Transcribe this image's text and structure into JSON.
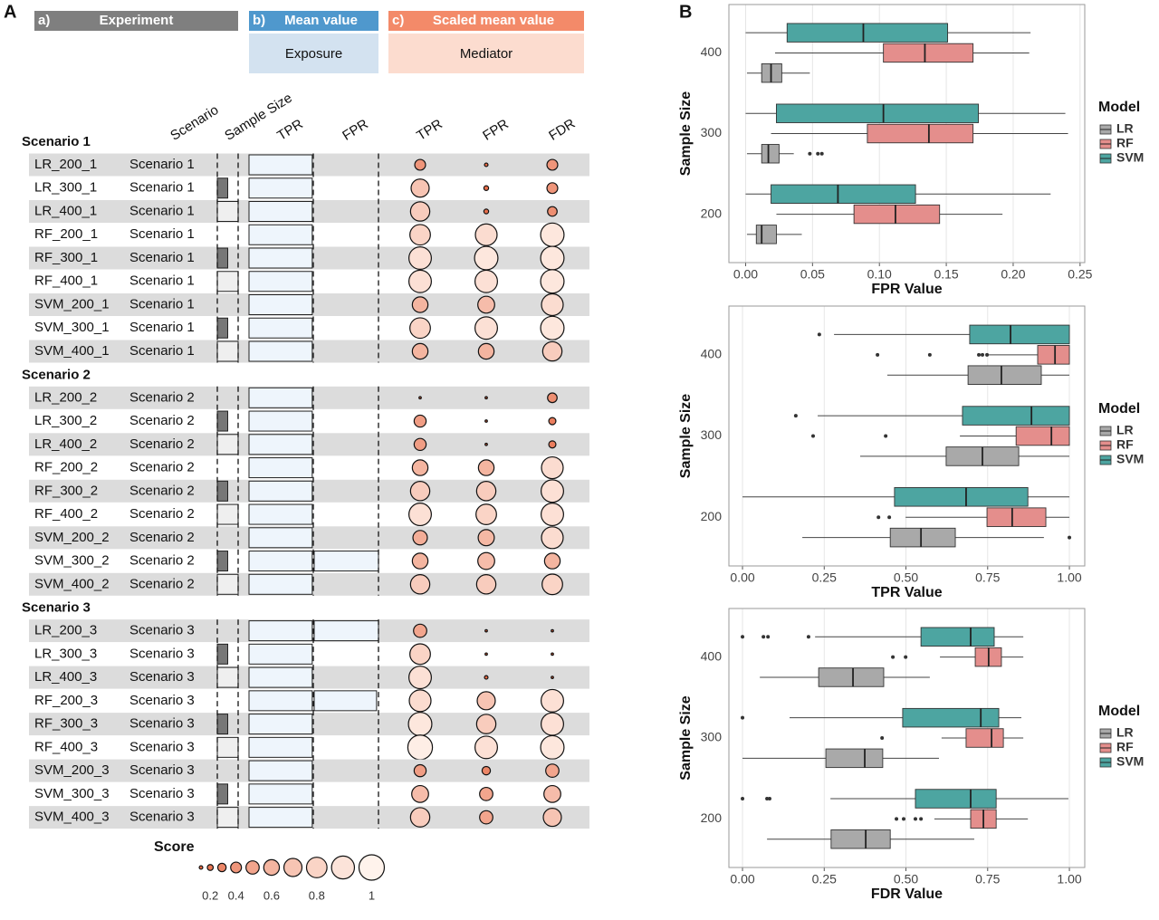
{
  "panel_a": {
    "label": "A",
    "headers": [
      {
        "tag": "a)",
        "title": "Experiment",
        "color": "#7f7f7f"
      },
      {
        "tag": "b)",
        "title": "Mean value",
        "subtitle": "Exposure",
        "color": "#4f98cd",
        "subcolor": "#d3e2f0"
      },
      {
        "tag": "c)",
        "title": "Scaled mean value",
        "subtitle": "Mediator",
        "color": "#f38a69",
        "subcolor": "#fcdccf"
      }
    ],
    "columns": [
      "Scenario",
      "Sample Size",
      "TPR",
      "FPR",
      "TPR",
      "FPR",
      "FDR"
    ],
    "sample_size_lim": [
      200,
      400
    ],
    "sample_size_colors": {
      "200": "#ffffff",
      "300": "#777777",
      "400": "#efefef"
    },
    "exposure_lim": [
      0,
      1
    ],
    "score_colors": [
      "#e4572e",
      "#fff3ec"
    ],
    "sections": [
      {
        "title": "Scenario 1",
        "rows": [
          {
            "id": "LR_200_1",
            "scenario": "Scenario 1",
            "sample_size": 200,
            "exposure_tpr": 0.97,
            "exposure_fpr": 0,
            "mediator_tpr": 0.4,
            "mediator_fpr": 0.1,
            "mediator_fdr": 0.4
          },
          {
            "id": "LR_300_1",
            "scenario": "Scenario 1",
            "sample_size": 300,
            "exposure_tpr": 0.97,
            "exposure_fpr": 0,
            "mediator_tpr": 0.7,
            "mediator_fpr": 0.15,
            "mediator_fdr": 0.4
          },
          {
            "id": "LR_400_1",
            "scenario": "Scenario 1",
            "sample_size": 400,
            "exposure_tpr": 0.97,
            "exposure_fpr": 0,
            "mediator_tpr": 0.75,
            "mediator_fpr": 0.15,
            "mediator_fdr": 0.35
          },
          {
            "id": "RF_200_1",
            "scenario": "Scenario 1",
            "sample_size": 200,
            "exposure_tpr": 0.97,
            "exposure_fpr": 0,
            "mediator_tpr": 0.8,
            "mediator_fpr": 0.85,
            "mediator_fdr": 0.92
          },
          {
            "id": "RF_300_1",
            "scenario": "Scenario 1",
            "sample_size": 300,
            "exposure_tpr": 0.97,
            "exposure_fpr": 0,
            "mediator_tpr": 0.88,
            "mediator_fpr": 0.92,
            "mediator_fdr": 0.92
          },
          {
            "id": "RF_400_1",
            "scenario": "Scenario 1",
            "sample_size": 400,
            "exposure_tpr": 0.97,
            "exposure_fpr": 0,
            "mediator_tpr": 0.88,
            "mediator_fpr": 0.88,
            "mediator_fdr": 0.92
          },
          {
            "id": "SVM_200_1",
            "scenario": "Scenario 1",
            "sample_size": 200,
            "exposure_tpr": 0.97,
            "exposure_fpr": 0,
            "mediator_tpr": 0.6,
            "mediator_fpr": 0.65,
            "mediator_fdr": 0.85
          },
          {
            "id": "SVM_300_1",
            "scenario": "Scenario 1",
            "sample_size": 300,
            "exposure_tpr": 0.97,
            "exposure_fpr": 0,
            "mediator_tpr": 0.8,
            "mediator_fpr": 0.88,
            "mediator_fdr": 0.92
          },
          {
            "id": "SVM_400_1",
            "scenario": "Scenario 1",
            "sample_size": 400,
            "exposure_tpr": 0.97,
            "exposure_fpr": 0,
            "mediator_tpr": 0.6,
            "mediator_fpr": 0.6,
            "mediator_fdr": 0.75
          }
        ]
      },
      {
        "title": "Scenario 2",
        "rows": [
          {
            "id": "LR_200_2",
            "scenario": "Scenario 2",
            "sample_size": 200,
            "exposure_tpr": 0.97,
            "exposure_fpr": 0,
            "mediator_tpr": 0.05,
            "mediator_fpr": 0.05,
            "mediator_fdr": 0.35
          },
          {
            "id": "LR_300_2",
            "scenario": "Scenario 2",
            "sample_size": 300,
            "exposure_tpr": 0.97,
            "exposure_fpr": 0,
            "mediator_tpr": 0.45,
            "mediator_fpr": 0.05,
            "mediator_fdr": 0.25
          },
          {
            "id": "LR_400_2",
            "scenario": "Scenario 2",
            "sample_size": 400,
            "exposure_tpr": 0.97,
            "exposure_fpr": 0,
            "mediator_tpr": 0.45,
            "mediator_fpr": 0.05,
            "mediator_fdr": 0.25
          },
          {
            "id": "RF_200_2",
            "scenario": "Scenario 2",
            "sample_size": 200,
            "exposure_tpr": 0.97,
            "exposure_fpr": 0,
            "mediator_tpr": 0.6,
            "mediator_fpr": 0.6,
            "mediator_fdr": 0.85
          },
          {
            "id": "RF_300_2",
            "scenario": "Scenario 2",
            "sample_size": 300,
            "exposure_tpr": 0.97,
            "exposure_fpr": 0,
            "mediator_tpr": 0.75,
            "mediator_fpr": 0.75,
            "mediator_fdr": 0.88
          },
          {
            "id": "RF_400_2",
            "scenario": "Scenario 2",
            "sample_size": 400,
            "exposure_tpr": 0.97,
            "exposure_fpr": 0,
            "mediator_tpr": 0.88,
            "mediator_fpr": 0.8,
            "mediator_fdr": 0.88
          },
          {
            "id": "SVM_200_2",
            "scenario": "Scenario 2",
            "sample_size": 200,
            "exposure_tpr": 0.97,
            "exposure_fpr": 0,
            "mediator_tpr": 0.55,
            "mediator_fpr": 0.62,
            "mediator_fdr": 0.85
          },
          {
            "id": "SVM_300_2",
            "scenario": "Scenario 2",
            "sample_size": 300,
            "exposure_tpr": 0.97,
            "exposure_fpr": 1,
            "mediator_tpr": 0.6,
            "mediator_fpr": 0.65,
            "mediator_fdr": 0.6
          },
          {
            "id": "SVM_400_2",
            "scenario": "Scenario 2",
            "sample_size": 400,
            "exposure_tpr": 0.97,
            "exposure_fpr": 0,
            "mediator_tpr": 0.75,
            "mediator_fpr": 0.75,
            "mediator_fdr": 0.8
          }
        ]
      },
      {
        "title": "Scenario 3",
        "rows": [
          {
            "id": "LR_200_3",
            "scenario": "Scenario 3",
            "sample_size": 200,
            "exposure_tpr": 0.97,
            "exposure_fpr": 1,
            "mediator_tpr": 0.5,
            "mediator_fpr": 0.05,
            "mediator_fdr": 0.05
          },
          {
            "id": "LR_300_3",
            "scenario": "Scenario 3",
            "sample_size": 300,
            "exposure_tpr": 0.97,
            "exposure_fpr": 0,
            "mediator_tpr": 0.8,
            "mediator_fpr": 0.05,
            "mediator_fdr": 0.05
          },
          {
            "id": "LR_400_3",
            "scenario": "Scenario 3",
            "sample_size": 400,
            "exposure_tpr": 0.97,
            "exposure_fpr": 0,
            "mediator_tpr": 0.88,
            "mediator_fpr": 0.1,
            "mediator_fdr": 0.05
          },
          {
            "id": "RF_200_3",
            "scenario": "Scenario 3",
            "sample_size": 200,
            "exposure_tpr": 0.97,
            "exposure_fpr": 0.97,
            "mediator_tpr": 0.85,
            "mediator_fpr": 0.7,
            "mediator_fdr": 0.88
          },
          {
            "id": "RF_300_3",
            "scenario": "Scenario 3",
            "sample_size": 300,
            "exposure_tpr": 0.97,
            "exposure_fpr": 0,
            "mediator_tpr": 0.92,
            "mediator_fpr": 0.75,
            "mediator_fdr": 0.88
          },
          {
            "id": "RF_400_3",
            "scenario": "Scenario 3",
            "sample_size": 400,
            "exposure_tpr": 0.97,
            "exposure_fpr": 0,
            "mediator_tpr": 0.97,
            "mediator_fpr": 0.88,
            "mediator_fdr": 0.92
          },
          {
            "id": "SVM_200_3",
            "scenario": "Scenario 3",
            "sample_size": 200,
            "exposure_tpr": 0.97,
            "exposure_fpr": 0,
            "mediator_tpr": 0.45,
            "mediator_fpr": 0.3,
            "mediator_fdr": 0.5
          },
          {
            "id": "SVM_300_3",
            "scenario": "Scenario 3",
            "sample_size": 300,
            "exposure_tpr": 0.97,
            "exposure_fpr": 0,
            "mediator_tpr": 0.65,
            "mediator_fpr": 0.5,
            "mediator_fdr": 0.65
          },
          {
            "id": "SVM_400_3",
            "scenario": "Scenario 3",
            "sample_size": 400,
            "exposure_tpr": 0.97,
            "exposure_fpr": 0,
            "mediator_tpr": 0.75,
            "mediator_fpr": 0.5,
            "mediator_fdr": 0.7
          }
        ]
      }
    ],
    "legend": {
      "title": "Score",
      "values": [
        0.1,
        0.2,
        0.3,
        0.4,
        0.5,
        0.6,
        0.7,
        0.8,
        0.9,
        1
      ],
      "ticks": [
        0.2,
        0.4,
        0.6,
        0.8,
        1
      ]
    }
  },
  "panel_b_label": "B",
  "chart_data": [
    {
      "type": "boxplot",
      "orientation": "horizontal",
      "xlabel": "FPR Value",
      "ylabel": "Sample Size",
      "legend_title": "Model",
      "legend": "right",
      "grid": true,
      "categories": [
        "200",
        "300",
        "400"
      ],
      "xlim": [
        -0.0125,
        0.2535
      ],
      "xticks": [
        {
          "value": 0,
          "label": "0.00"
        },
        {
          "value": 0.05,
          "label": "0.05"
        },
        {
          "value": 0.1,
          "label": "0.10"
        },
        {
          "value": 0.15,
          "label": "0.15"
        },
        {
          "value": 0.2,
          "label": "0.20"
        },
        {
          "value": 0.25,
          "label": "0.25"
        }
      ],
      "series": [
        {
          "name": "LR",
          "color": "#a9a9a9",
          "values": [
            {
              "min": 0.001,
              "q1": 0.008,
              "median": 0.012,
              "q3": 0.023,
              "max": 0.042,
              "outliers": []
            },
            {
              "min": 0.001,
              "q1": 0.012,
              "median": 0.017,
              "q3": 0.025,
              "max": 0.036,
              "outliers": [
                0.048,
                0.054,
                0.057
              ]
            },
            {
              "min": 0.001,
              "q1": 0.012,
              "median": 0.019,
              "q3": 0.027,
              "max": 0.048,
              "outliers": []
            }
          ]
        },
        {
          "name": "RF",
          "color": "#e48e8c",
          "values": [
            {
              "min": 0.023,
              "q1": 0.081,
              "median": 0.112,
              "q3": 0.145,
              "max": 0.192,
              "outliers": []
            },
            {
              "min": 0.019,
              "q1": 0.091,
              "median": 0.137,
              "q3": 0.17,
              "max": 0.241,
              "outliers": []
            },
            {
              "min": 0.022,
              "q1": 0.103,
              "median": 0.134,
              "q3": 0.17,
              "max": 0.212,
              "outliers": []
            }
          ]
        },
        {
          "name": "SVM",
          "color": "#4da5a1",
          "values": [
            {
              "min": 0,
              "q1": 0.019,
              "median": 0.069,
              "q3": 0.127,
              "max": 0.228,
              "outliers": []
            },
            {
              "min": 0,
              "q1": 0.023,
              "median": 0.103,
              "q3": 0.174,
              "max": 0.239,
              "outliers": []
            },
            {
              "min": 0,
              "q1": 0.031,
              "median": 0.088,
              "q3": 0.151,
              "max": 0.213,
              "outliers": []
            }
          ]
        }
      ]
    },
    {
      "type": "boxplot",
      "orientation": "horizontal",
      "xlabel": "TPR Value",
      "ylabel": "Sample Size",
      "legend_title": "Model",
      "legend": "right",
      "grid": true,
      "categories": [
        "200",
        "300",
        "400"
      ],
      "xlim": [
        -0.0416,
        1.047
      ],
      "xticks": [
        {
          "value": 0,
          "label": "0.00"
        },
        {
          "value": 0.25,
          "label": "0.25"
        },
        {
          "value": 0.5,
          "label": "0.50"
        },
        {
          "value": 0.75,
          "label": "0.75"
        },
        {
          "value": 1,
          "label": "1.00"
        }
      ],
      "series": [
        {
          "name": "LR",
          "color": "#a9a9a9",
          "values": [
            {
              "min": 0.183,
              "q1": 0.452,
              "median": 0.546,
              "q3": 0.651,
              "max": 0.922,
              "outliers": [
                1
              ]
            },
            {
              "min": 0.36,
              "q1": 0.623,
              "median": 0.734,
              "q3": 0.845,
              "max": 1,
              "outliers": []
            },
            {
              "min": 0.443,
              "q1": 0.69,
              "median": 0.792,
              "q3": 0.914,
              "max": 1,
              "outliers": []
            }
          ]
        },
        {
          "name": "RF",
          "color": "#e48e8c",
          "values": [
            {
              "min": 0.499,
              "q1": 0.748,
              "median": 0.825,
              "q3": 0.928,
              "max": 1,
              "outliers": [
                0.416,
                0.449
              ]
            },
            {
              "min": 0.665,
              "q1": 0.837,
              "median": 0.945,
              "q3": 1,
              "max": 1,
              "outliers": [
                0.216,
                0.438
              ]
            },
            {
              "min": 0.753,
              "q1": 0.903,
              "median": 0.956,
              "q3": 1,
              "max": 1,
              "outliers": [
                0.413,
                0.573,
                0.723,
                0.734,
                0.748
              ]
            }
          ]
        },
        {
          "name": "SVM",
          "color": "#4da5a1",
          "values": [
            {
              "min": 0,
              "q1": 0.465,
              "median": 0.684,
              "q3": 0.873,
              "max": 1,
              "outliers": []
            },
            {
              "min": 0.23,
              "q1": 0.673,
              "median": 0.884,
              "q3": 1,
              "max": 1,
              "outliers": [
                0.163
              ]
            },
            {
              "min": 0.28,
              "q1": 0.695,
              "median": 0.82,
              "q3": 1,
              "max": 1,
              "outliers": [
                0.235
              ]
            }
          ]
        }
      ]
    },
    {
      "type": "boxplot",
      "orientation": "horizontal",
      "xlabel": "FDR Value",
      "ylabel": "Sample Size",
      "legend_title": "Model",
      "legend": "right",
      "grid": true,
      "categories": [
        "200",
        "300",
        "400"
      ],
      "xlim": [
        -0.0416,
        1.047
      ],
      "xticks": [
        {
          "value": 0,
          "label": "0.00"
        },
        {
          "value": 0.25,
          "label": "0.25"
        },
        {
          "value": 0.5,
          "label": "0.50"
        },
        {
          "value": 0.75,
          "label": "0.75"
        },
        {
          "value": 1,
          "label": "1.00"
        }
      ],
      "series": [
        {
          "name": "LR",
          "color": "#a9a9a9",
          "values": [
            {
              "min": 0.075,
              "q1": 0.271,
              "median": 0.377,
              "q3": 0.452,
              "max": 0.709,
              "outliers": []
            },
            {
              "min": 0,
              "q1": 0.255,
              "median": 0.374,
              "q3": 0.429,
              "max": 0.601,
              "outliers": []
            },
            {
              "min": 0.053,
              "q1": 0.233,
              "median": 0.338,
              "q3": 0.432,
              "max": 0.573,
              "outliers": []
            }
          ]
        },
        {
          "name": "RF",
          "color": "#e48e8c",
          "values": [
            {
              "min": 0.587,
              "q1": 0.698,
              "median": 0.737,
              "q3": 0.776,
              "max": 0.873,
              "outliers": [
                0.471,
                0.493,
                0.529,
                0.546
              ]
            },
            {
              "min": 0.609,
              "q1": 0.684,
              "median": 0.762,
              "q3": 0.798,
              "max": 0.859,
              "outliers": [
                0.427
              ]
            },
            {
              "min": 0.604,
              "q1": 0.712,
              "median": 0.753,
              "q3": 0.792,
              "max": 0.859,
              "outliers": [
                0.46,
                0.499
              ]
            }
          ]
        },
        {
          "name": "SVM",
          "color": "#4da5a1",
          "values": [
            {
              "min": 0.269,
              "q1": 0.529,
              "median": 0.698,
              "q3": 0.776,
              "max": 0.997,
              "outliers": [
                0,
                0.075,
                0.083
              ]
            },
            {
              "min": 0.144,
              "q1": 0.49,
              "median": 0.729,
              "q3": 0.784,
              "max": 0.853,
              "outliers": [
                0
              ]
            },
            {
              "min": 0.222,
              "q1": 0.546,
              "median": 0.698,
              "q3": 0.77,
              "max": 0.859,
              "outliers": [
                0,
                0.064,
                0.078,
                0.202
              ]
            }
          ]
        }
      ]
    }
  ]
}
